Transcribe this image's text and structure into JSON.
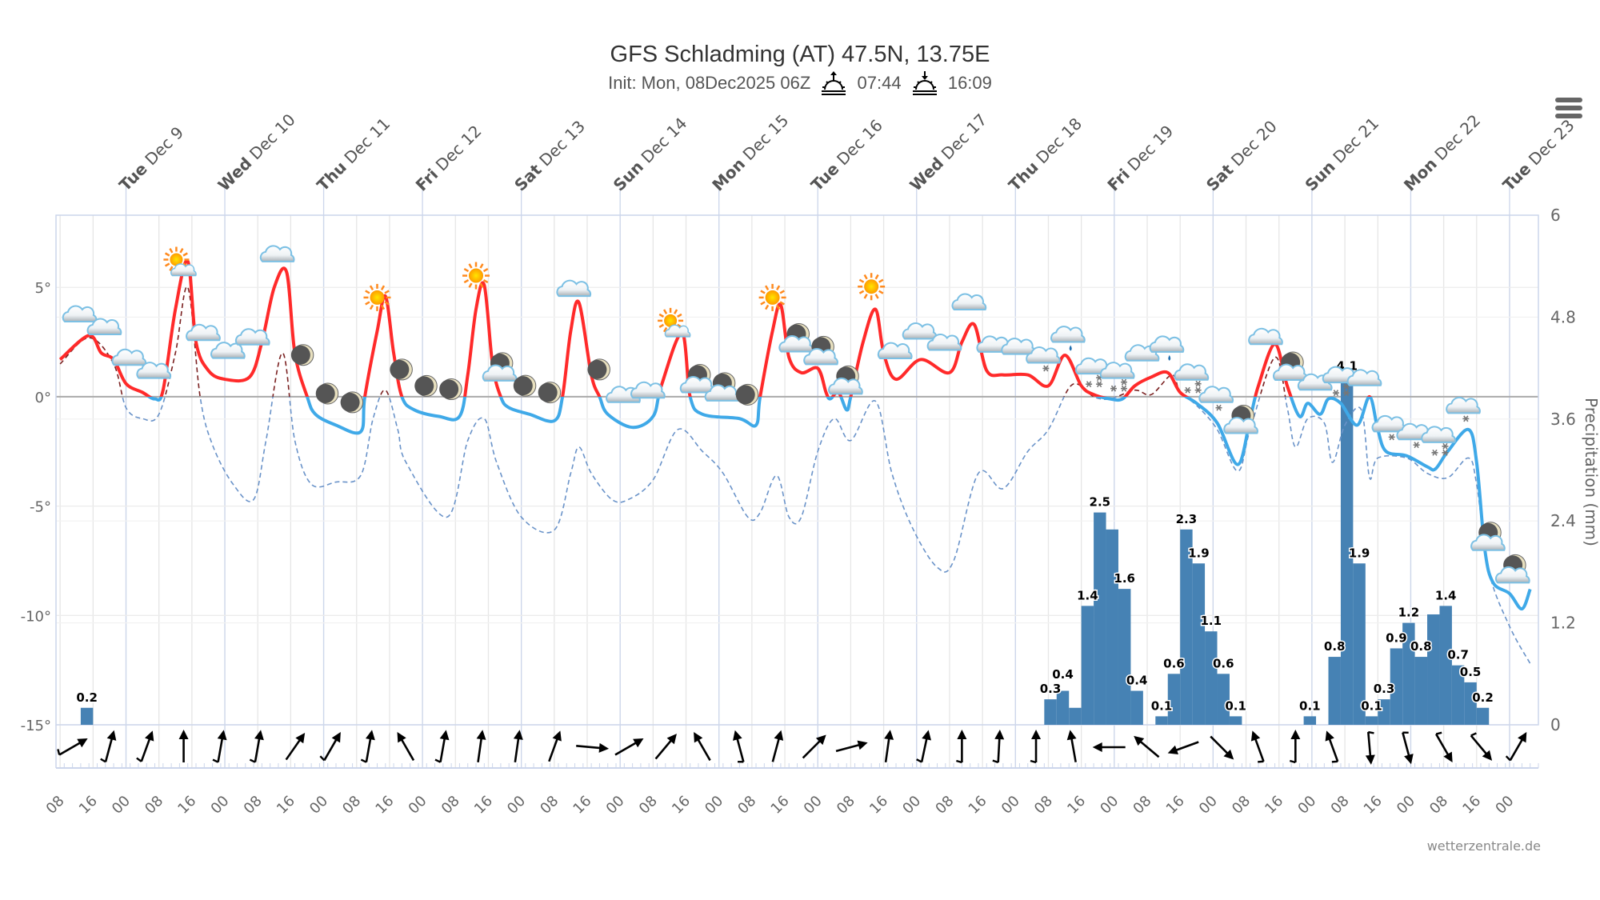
{
  "header": {
    "title": "GFS Schladming (AT) 47.5N, 13.75E",
    "init": "Init: Mon, 08Dec2025 06Z",
    "sunrise": "07:44",
    "sunset": "16:09",
    "credit": "wetterzentrale.de"
  },
  "chart_data": {
    "type": "line",
    "title": "GFS Schladming (AT) 47.5N, 13.75E",
    "subtitle": "Init: Mon, 08Dec2025 06Z",
    "time_range": [
      "12-08 07",
      "12-23 07"
    ],
    "x_tick_labels": [
      "08",
      "16",
      "00"
    ],
    "day_labels": [
      {
        "dow": "Tue",
        "date": "Dec 9"
      },
      {
        "dow": "Wed",
        "date": "Dec 10"
      },
      {
        "dow": "Thu",
        "date": "Dec 11"
      },
      {
        "dow": "Fri",
        "date": "Dec 12"
      },
      {
        "dow": "Sat",
        "date": "Dec 13"
      },
      {
        "dow": "Sun",
        "date": "Dec 14"
      },
      {
        "dow": "Mon",
        "date": "Dec 15"
      },
      {
        "dow": "Tue",
        "date": "Dec 16"
      },
      {
        "dow": "Wed",
        "date": "Dec 17"
      },
      {
        "dow": "Thu",
        "date": "Dec 18"
      },
      {
        "dow": "Fri",
        "date": "Dec 19"
      },
      {
        "dow": "Sat",
        "date": "Dec 20"
      },
      {
        "dow": "Sun",
        "date": "Dec 21"
      },
      {
        "dow": "Mon",
        "date": "Dec 22"
      },
      {
        "dow": "Tue",
        "date": "Dec 23"
      }
    ],
    "y_left": {
      "ticks": [
        -15,
        -10,
        -5,
        0,
        5
      ],
      "tick_suffix": "°",
      "range": [
        -15,
        8.3
      ]
    },
    "y_right": {
      "label": "Precipitation (mm)",
      "ticks": [
        "0",
        "1.2",
        "2.4",
        "3.6",
        "4.8",
        "6"
      ],
      "range": [
        0,
        6
      ]
    },
    "grid": true,
    "colors": {
      "temp_above": "#ff2a2a",
      "temp_below": "#3fa9e8",
      "dew_above": "#7a2020",
      "dew_below": "#6a93c9",
      "precip": "#4682b4"
    },
    "temperature": [
      [
        "12-08 08",
        1.7
      ],
      [
        "12-08 15",
        2.8
      ],
      [
        "12-08 18",
        2.0
      ],
      [
        "12-08 21",
        1.7
      ],
      [
        "12-09 00",
        0.6
      ],
      [
        "12-09 04",
        0.2
      ],
      [
        "12-09 07",
        -0.1
      ],
      [
        "12-09 09",
        0.3
      ],
      [
        "12-09 12",
        4.0
      ],
      [
        "12-09 15",
        6.2
      ],
      [
        "12-09 17",
        2.5
      ],
      [
        "12-09 20",
        1.2
      ],
      [
        "12-10 00",
        0.8
      ],
      [
        "12-10 06",
        0.9
      ],
      [
        "12-10 09",
        2.5
      ],
      [
        "12-10 12",
        5.0
      ],
      [
        "12-10 15",
        5.7
      ],
      [
        "12-10 17",
        2.0
      ],
      [
        "12-10 20",
        0
      ],
      [
        "12-10 22",
        -0.8
      ],
      [
        "12-11 03",
        -1.3
      ],
      [
        "12-11 09",
        -1.6
      ],
      [
        "12-11 10",
        0
      ],
      [
        "12-11 13",
        3.0
      ],
      [
        "12-11 15",
        4.6
      ],
      [
        "12-11 17",
        2.0
      ],
      [
        "12-11 19",
        0
      ],
      [
        "12-11 22",
        -0.6
      ],
      [
        "12-12 04",
        -0.9
      ],
      [
        "12-12 09",
        -0.9
      ],
      [
        "12-12 11",
        1.0
      ],
      [
        "12-12 13",
        4.0
      ],
      [
        "12-12 15",
        5.1
      ],
      [
        "12-12 17",
        1.5
      ],
      [
        "12-12 19",
        0
      ],
      [
        "12-12 21",
        -0.5
      ],
      [
        "12-13 02",
        -0.8
      ],
      [
        "12-13 08",
        -1.1
      ],
      [
        "12-13 10",
        0
      ],
      [
        "12-13 12",
        3.0
      ],
      [
        "12-13 14",
        4.3
      ],
      [
        "12-13 17",
        1.0
      ],
      [
        "12-13 19",
        0
      ],
      [
        "12-13 21",
        -0.8
      ],
      [
        "12-14 03",
        -1.4
      ],
      [
        "12-14 08",
        -0.9
      ],
      [
        "12-14 10",
        0.5
      ],
      [
        "12-14 15",
        2.9
      ],
      [
        "12-14 17",
        0
      ],
      [
        "12-14 20",
        -0.8
      ],
      [
        "12-15 05",
        -1.0
      ],
      [
        "12-15 09",
        -1.3
      ],
      [
        "12-15 10",
        0
      ],
      [
        "12-15 13",
        3.0
      ],
      [
        "12-15 15",
        4.2
      ],
      [
        "12-15 17",
        1.8
      ],
      [
        "12-15 20",
        1.1
      ],
      [
        "12-16 00",
        1.3
      ],
      [
        "12-16 02",
        0.2
      ],
      [
        "12-16 03",
        -0.1
      ],
      [
        "12-16 05",
        0.2
      ],
      [
        "12-16 07",
        -0.6
      ],
      [
        "12-16 08",
        0
      ],
      [
        "12-16 11",
        2.5
      ],
      [
        "12-16 14",
        4.0
      ],
      [
        "12-16 16",
        2.0
      ],
      [
        "12-16 19",
        0.8
      ],
      [
        "12-17 01",
        1.7
      ],
      [
        "12-17 08",
        1.1
      ],
      [
        "12-17 11",
        2.5
      ],
      [
        "12-17 14",
        3.3
      ],
      [
        "12-17 17",
        1.2
      ],
      [
        "12-17 21",
        1.0
      ],
      [
        "12-18 03",
        1.0
      ],
      [
        "12-18 08",
        0.5
      ],
      [
        "12-18 12",
        1.9
      ],
      [
        "12-18 16",
        0.5
      ],
      [
        "12-18 19",
        0.1
      ],
      [
        "12-18 23",
        -0.1
      ],
      [
        "12-19 02",
        -0.1
      ],
      [
        "12-19 05",
        0.5
      ],
      [
        "12-19 09",
        0.9
      ],
      [
        "12-19 13",
        1.1
      ],
      [
        "12-19 16",
        0.2
      ],
      [
        "12-19 20",
        -0.3
      ],
      [
        "12-20 01",
        -1.2
      ],
      [
        "12-20 06",
        -3.1
      ],
      [
        "12-20 09",
        -1.0
      ],
      [
        "12-20 11",
        0.5
      ],
      [
        "12-20 15",
        2.4
      ],
      [
        "12-20 18",
        0.5
      ],
      [
        "12-20 21",
        -0.9
      ],
      [
        "12-20 23",
        -0.3
      ],
      [
        "12-21 02",
        -0.8
      ],
      [
        "12-21 04",
        -0.1
      ],
      [
        "12-21 07",
        -0.3
      ],
      [
        "12-21 11",
        -1.3
      ],
      [
        "12-21 14",
        0
      ],
      [
        "12-21 16",
        -1.5
      ],
      [
        "12-21 18",
        -2.5
      ],
      [
        "12-21 23",
        -2.7
      ],
      [
        "12-22 04",
        -3.2
      ],
      [
        "12-22 06",
        -3.3
      ],
      [
        "12-22 09",
        -2.5
      ],
      [
        "12-22 14",
        -1.5
      ],
      [
        "12-22 16",
        -3.0
      ],
      [
        "12-22 18",
        -7.0
      ],
      [
        "12-22 20",
        -8.5
      ],
      [
        "12-23 00",
        -9.0
      ],
      [
        "12-23 03",
        -9.7
      ],
      [
        "12-23 05",
        -8.8
      ]
    ],
    "dewpoint": [
      [
        "12-08 08",
        1.5
      ],
      [
        "12-08 15",
        2.7
      ],
      [
        "12-08 21",
        1.5
      ],
      [
        "12-09 00",
        -0.5
      ],
      [
        "12-09 04",
        -1.0
      ],
      [
        "12-09 08",
        -0.8
      ],
      [
        "12-09 12",
        2.0
      ],
      [
        "12-09 15",
        5.0
      ],
      [
        "12-09 18",
        0
      ],
      [
        "12-09 21",
        -2.2
      ],
      [
        "12-10 02",
        -4.0
      ],
      [
        "12-10 07",
        -4.7
      ],
      [
        "12-10 10",
        -2.0
      ],
      [
        "12-10 14",
        2.0
      ],
      [
        "12-10 17",
        -2.0
      ],
      [
        "12-10 21",
        -4.0
      ],
      [
        "12-11 03",
        -3.9
      ],
      [
        "12-11 09",
        -3.6
      ],
      [
        "12-11 12",
        -1.0
      ],
      [
        "12-11 15",
        0.3
      ],
      [
        "12-11 18",
        -1.5
      ],
      [
        "12-11 20",
        -3.0
      ],
      [
        "12-12 06",
        -5.5
      ],
      [
        "12-12 11",
        -2.0
      ],
      [
        "12-12 15",
        -1.0
      ],
      [
        "12-12 18",
        -3.0
      ],
      [
        "12-13 00",
        -5.5
      ],
      [
        "12-13 08",
        -6.1
      ],
      [
        "12-13 12",
        -3.5
      ],
      [
        "12-13 14",
        -2.3
      ],
      [
        "12-13 17",
        -3.5
      ],
      [
        "12-13 22",
        -4.7
      ],
      [
        "12-14 02",
        -4.7
      ],
      [
        "12-14 08",
        -3.8
      ],
      [
        "12-14 14",
        -1.5
      ],
      [
        "12-14 20",
        -2.5
      ],
      [
        "12-15 01",
        -3.5
      ],
      [
        "12-15 07",
        -5.5
      ],
      [
        "12-15 10",
        -5.3
      ],
      [
        "12-15 14",
        -3.6
      ],
      [
        "12-15 17",
        -5.5
      ],
      [
        "12-15 20",
        -5.5
      ],
      [
        "12-16 00",
        -2.5
      ],
      [
        "12-16 04",
        -1.0
      ],
      [
        "12-16 08",
        -2.0
      ],
      [
        "12-16 14",
        -0.2
      ],
      [
        "12-16 18",
        -3.5
      ],
      [
        "12-16 23",
        -6.0
      ],
      [
        "12-17 05",
        -7.8
      ],
      [
        "12-17 09",
        -7.5
      ],
      [
        "12-17 15",
        -3.5
      ],
      [
        "12-17 21",
        -4.2
      ],
      [
        "12-18 03",
        -2.5
      ],
      [
        "12-18 08",
        -1.5
      ],
      [
        "12-18 13",
        0.4
      ],
      [
        "12-18 16",
        0.5
      ],
      [
        "12-18 19",
        0.0
      ],
      [
        "12-18 23",
        -0.1
      ],
      [
        "12-19 05",
        0.3
      ],
      [
        "12-19 09",
        0.1
      ],
      [
        "12-19 14",
        1.0
      ],
      [
        "12-19 16",
        0.2
      ],
      [
        "12-19 20",
        -0.4
      ],
      [
        "12-20 01",
        -1.5
      ],
      [
        "12-20 06",
        -3.4
      ],
      [
        "12-20 09",
        -1.5
      ],
      [
        "12-20 15",
        1.8
      ],
      [
        "12-20 18",
        -0.5
      ],
      [
        "12-20 20",
        -2.3
      ],
      [
        "12-20 23",
        -1.0
      ],
      [
        "12-21 03",
        -1.2
      ],
      [
        "12-21 05",
        -3.0
      ],
      [
        "12-21 08",
        -1.3
      ],
      [
        "12-21 12",
        -0.6
      ],
      [
        "12-21 14",
        -3.7
      ],
      [
        "12-21 16",
        -2.8
      ],
      [
        "12-21 23",
        -2.8
      ],
      [
        "12-22 04",
        -3.5
      ],
      [
        "12-22 09",
        -3.7
      ],
      [
        "12-22 14",
        -2.8
      ],
      [
        "12-22 16",
        -4.0
      ],
      [
        "12-22 19",
        -8.0
      ],
      [
        "12-23 00",
        -10.5
      ],
      [
        "12-23 05",
        -12.2
      ]
    ],
    "precipitation_3h": [
      [
        "12-08 13",
        0.2,
        "0.2"
      ],
      [
        "12-18 07",
        0.3,
        "0.3"
      ],
      [
        "12-18 10",
        0.4,
        "0.4"
      ],
      [
        "12-18 13",
        0.2,
        ""
      ],
      [
        "12-18 16",
        1.4,
        "1.4"
      ],
      [
        "12-18 19",
        2.5,
        "2.5"
      ],
      [
        "12-18 22",
        2.3,
        ""
      ],
      [
        "12-19 01",
        1.6,
        "1.6"
      ],
      [
        "12-19 04",
        0.4,
        "0.4"
      ],
      [
        "12-19 10",
        0.1,
        "0.1"
      ],
      [
        "12-19 13",
        0.6,
        "0.6"
      ],
      [
        "12-19 16",
        2.3,
        "2.3"
      ],
      [
        "12-19 19",
        1.9,
        "1.9"
      ],
      [
        "12-19 22",
        1.1,
        "1.1"
      ],
      [
        "12-20 01",
        0.6,
        "0.6"
      ],
      [
        "12-20 04",
        0.1,
        "0.1"
      ],
      [
        "12-20 22",
        0.1,
        "0.1"
      ],
      [
        "12-21 04",
        0.8,
        "0.8"
      ],
      [
        "12-21 07",
        4.1,
        "4.1"
      ],
      [
        "12-21 10",
        1.9,
        "1.9"
      ],
      [
        "12-21 13",
        0.1,
        "0.1"
      ],
      [
        "12-21 16",
        0.3,
        "0.3"
      ],
      [
        "12-21 19",
        0.9,
        "0.9"
      ],
      [
        "12-21 22",
        1.2,
        "1.2"
      ],
      [
        "12-22 01",
        0.8,
        "0.8"
      ],
      [
        "12-22 04",
        1.3,
        ""
      ],
      [
        "12-22 07",
        1.4,
        "1.4"
      ],
      [
        "12-22 10",
        0.7,
        "0.7"
      ],
      [
        "12-22 13",
        0.5,
        "0.5"
      ],
      [
        "12-22 16",
        0.2,
        "0.2"
      ]
    ],
    "weather_icons": [
      [
        "12-08 13",
        "cloud"
      ],
      [
        "12-08 19",
        "cloud"
      ],
      [
        "12-09 01",
        "cloud"
      ],
      [
        "12-09 07",
        "cloud"
      ],
      [
        "12-09 13",
        "sun-cloud"
      ],
      [
        "12-09 19",
        "cloud"
      ],
      [
        "12-10 01",
        "cloud"
      ],
      [
        "12-10 07",
        "cloud"
      ],
      [
        "12-10 13",
        "cloud"
      ],
      [
        "12-10 19",
        "moon"
      ],
      [
        "12-11 01",
        "moon"
      ],
      [
        "12-11 07",
        "moon"
      ],
      [
        "12-11 13",
        "sun"
      ],
      [
        "12-11 19",
        "moon"
      ],
      [
        "12-12 01",
        "moon"
      ],
      [
        "12-12 07",
        "moon"
      ],
      [
        "12-12 13",
        "sun"
      ],
      [
        "12-12 19",
        "moon-cloud"
      ],
      [
        "12-13 01",
        "moon"
      ],
      [
        "12-13 07",
        "moon"
      ],
      [
        "12-13 13",
        "cloud"
      ],
      [
        "12-13 19",
        "moon"
      ],
      [
        "12-14 01",
        "cloud"
      ],
      [
        "12-14 07",
        "cloud"
      ],
      [
        "12-14 13",
        "sun-cloud"
      ],
      [
        "12-14 19",
        "moon-cloud"
      ],
      [
        "12-15 01",
        "moon-cloud"
      ],
      [
        "12-15 07",
        "moon"
      ],
      [
        "12-15 13",
        "sun"
      ],
      [
        "12-15 19",
        "moon-cloud"
      ],
      [
        "12-16 01",
        "moon-cloud"
      ],
      [
        "12-16 07",
        "moon-cloud"
      ],
      [
        "12-16 13",
        "sun"
      ],
      [
        "12-16 19",
        "cloud"
      ],
      [
        "12-17 01",
        "cloud"
      ],
      [
        "12-17 07",
        "cloud"
      ],
      [
        "12-17 13",
        "cloud"
      ],
      [
        "12-17 19",
        "cloud"
      ],
      [
        "12-18 01",
        "cloud"
      ],
      [
        "12-18 07",
        "cloud-snow"
      ],
      [
        "12-18 13",
        "cloud-rain"
      ],
      [
        "12-18 19",
        "cloud-snow-heavy"
      ],
      [
        "12-19 01",
        "cloud-snow-heavy"
      ],
      [
        "12-19 07",
        "cloud"
      ],
      [
        "12-19 13",
        "cloud-rain"
      ],
      [
        "12-19 19",
        "cloud-snow-heavy"
      ],
      [
        "12-20 01",
        "cloud-snow"
      ],
      [
        "12-20 07",
        "moon-cloud"
      ],
      [
        "12-20 13",
        "cloud"
      ],
      [
        "12-20 19",
        "moon-cloud"
      ],
      [
        "12-21 01",
        "cloud"
      ],
      [
        "12-21 07",
        "cloud-snow-heavy"
      ],
      [
        "12-21 13",
        "cloud"
      ],
      [
        "12-21 19",
        "cloud-snow"
      ],
      [
        "12-22 01",
        "cloud-snow"
      ],
      [
        "12-22 07",
        "cloud-snow-heavy"
      ],
      [
        "12-22 13",
        "cloud-snow"
      ],
      [
        "12-22 19",
        "moon-cloud"
      ],
      [
        "12-23 01",
        "moon-cloud"
      ]
    ],
    "wind": [
      [
        "12-08 11",
        240,
        1
      ],
      [
        "12-08 20",
        195,
        1
      ],
      [
        "12-09 05",
        200,
        1
      ],
      [
        "12-09 14",
        180,
        0
      ],
      [
        "12-09 23",
        190,
        1
      ],
      [
        "12-10 08",
        190,
        1
      ],
      [
        "12-10 17",
        215,
        0
      ],
      [
        "12-11 02",
        210,
        1
      ],
      [
        "12-11 11",
        190,
        1
      ],
      [
        "12-11 20",
        150,
        0
      ],
      [
        "12-12 05",
        190,
        1
      ],
      [
        "12-12 14",
        188,
        0
      ],
      [
        "12-12 23",
        188,
        0
      ],
      [
        "12-13 08",
        200,
        0
      ],
      [
        "12-13 17",
        275,
        0
      ],
      [
        "12-14 02",
        240,
        0
      ],
      [
        "12-14 11",
        220,
        0
      ],
      [
        "12-14 20",
        150,
        0
      ],
      [
        "12-15 05",
        165,
        1
      ],
      [
        "12-15 14",
        195,
        0
      ],
      [
        "12-15 23",
        225,
        0
      ],
      [
        "12-16 08",
        255,
        0
      ],
      [
        "12-16 17",
        188,
        0
      ],
      [
        "12-17 02",
        192,
        1
      ],
      [
        "12-17 11",
        180,
        1
      ],
      [
        "12-17 20",
        183,
        1
      ],
      [
        "12-18 05",
        180,
        1
      ],
      [
        "12-18 14",
        170,
        0
      ],
      [
        "12-18 23",
        90,
        0
      ],
      [
        "12-19 08",
        130,
        0
      ],
      [
        "12-19 17",
        70,
        0
      ],
      [
        "12-20 02",
        315,
        0
      ],
      [
        "12-20 11",
        160,
        1
      ],
      [
        "12-20 20",
        180,
        1
      ],
      [
        "12-21 05",
        160,
        1
      ],
      [
        "12-21 14",
        355,
        1
      ],
      [
        "12-21 23",
        345,
        1
      ],
      [
        "12-22 08",
        330,
        1
      ],
      [
        "12-22 17",
        320,
        1
      ],
      [
        "12-23 02",
        210,
        1
      ]
    ]
  }
}
